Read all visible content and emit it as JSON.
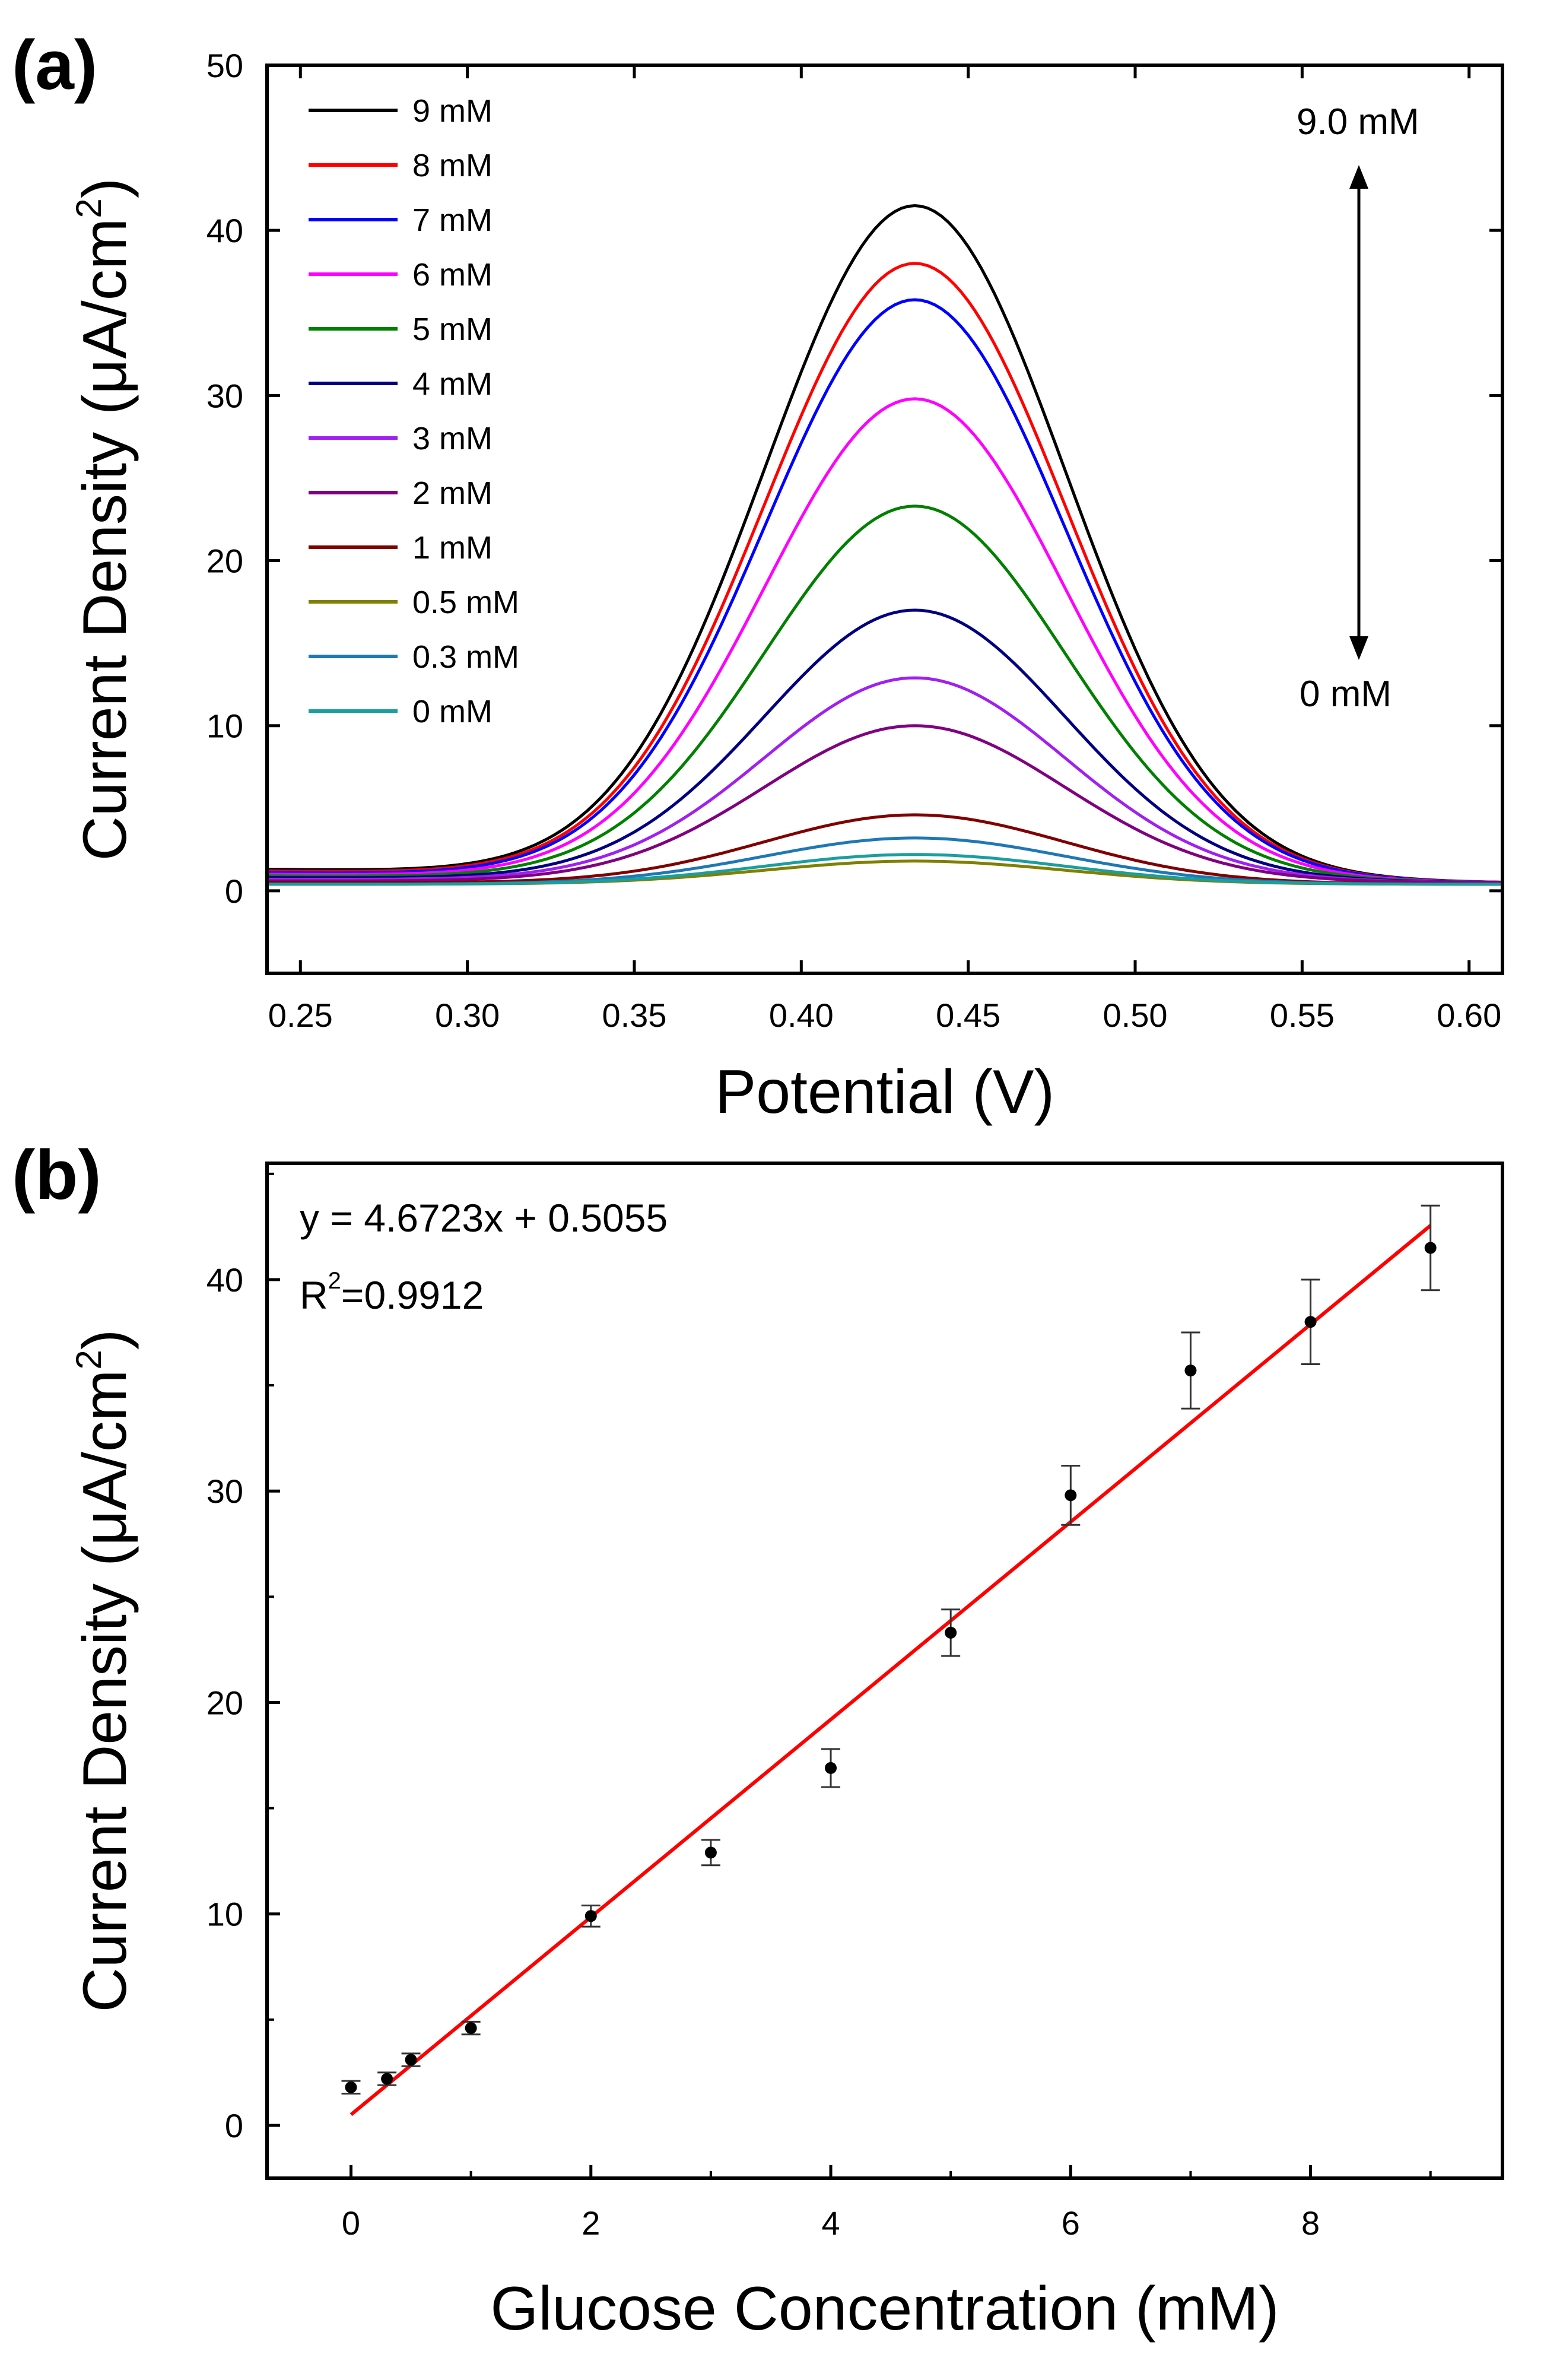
{
  "chart_data": [
    {
      "panel": "(a)",
      "type": "line",
      "xlabel": "Potential (V)",
      "ylabel": "Current Density (μA/cm",
      "ylabel_sup": "2",
      "ylabel_end": ")",
      "xlim": [
        0.24,
        0.61
      ],
      "ylim": [
        -5,
        50
      ],
      "xticks": [
        0.25,
        0.3,
        0.35,
        0.4,
        0.45,
        0.5,
        0.55,
        0.6
      ],
      "xtick_labels": [
        "0.25",
        "0.30",
        "0.35",
        "0.40",
        "0.45",
        "0.50",
        "0.55",
        "0.60"
      ],
      "yticks": [
        0,
        10,
        20,
        30,
        40,
        50
      ],
      "ytick_labels": [
        "0",
        "10",
        "20",
        "30",
        "40",
        "50"
      ],
      "legend_position": "top-left",
      "annotations": {
        "top": "9.0 mM",
        "bottom": "0 mM"
      },
      "series": [
        {
          "name": "9 mM",
          "color": "#000000",
          "peak": 41.5,
          "base_left": 1.3,
          "base_right": 0.5
        },
        {
          "name": "8 mM",
          "color": "#ff0000",
          "peak": 38.0,
          "base_left": 1.2,
          "base_right": 0.5
        },
        {
          "name": "7 mM",
          "color": "#0000ff",
          "peak": 35.8,
          "base_left": 1.1,
          "base_right": 0.5
        },
        {
          "name": "6 mM",
          "color": "#ff00ff",
          "peak": 29.8,
          "base_left": 1.0,
          "base_right": 0.5
        },
        {
          "name": "5 mM",
          "color": "#008000",
          "peak": 23.3,
          "base_left": 0.9,
          "base_right": 0.5
        },
        {
          "name": "4 mM",
          "color": "#000080",
          "peak": 17.0,
          "base_left": 0.8,
          "base_right": 0.5
        },
        {
          "name": "3 mM",
          "color": "#a020f0",
          "peak": 12.9,
          "base_left": 0.7,
          "base_right": 0.5
        },
        {
          "name": "2 mM",
          "color": "#800080",
          "peak": 10.0,
          "base_left": 0.6,
          "base_right": 0.5
        },
        {
          "name": "1 mM",
          "color": "#800000",
          "peak": 4.6,
          "base_left": 0.5,
          "base_right": 0.4
        },
        {
          "name": "0.5 mM",
          "color": "#808000",
          "peak": 1.8,
          "base_left": 0.4,
          "base_right": 0.4
        },
        {
          "name": "0.3 mM",
          "color": "#1e78b4",
          "peak": 3.2,
          "base_left": 0.4,
          "base_right": 0.4
        },
        {
          "name": "0 mM",
          "color": "#1a9e9e",
          "peak": 2.2,
          "base_left": 0.4,
          "base_right": 0.4
        }
      ]
    },
    {
      "panel": "(b)",
      "type": "scatter",
      "xlabel": "Glucose Concentration (mM)",
      "ylabel": "Current Density (μA/cm",
      "ylabel_sup": "2",
      "ylabel_end": ")",
      "xlim": [
        -0.7,
        9.6
      ],
      "ylim": [
        -2.5,
        45.5
      ],
      "xticks": [
        0,
        2,
        4,
        6,
        8
      ],
      "xtick_labels": [
        "0",
        "2",
        "4",
        "6",
        "8"
      ],
      "yticks": [
        0,
        10,
        20,
        30,
        40
      ],
      "ytick_labels": [
        "0",
        "10",
        "20",
        "30",
        "40"
      ],
      "points": [
        {
          "x": 0,
          "y": 1.8,
          "err": 0.3
        },
        {
          "x": 0.3,
          "y": 2.2,
          "err": 0.3
        },
        {
          "x": 0.5,
          "y": 3.1,
          "err": 0.3
        },
        {
          "x": 1,
          "y": 4.6,
          "err": 0.3
        },
        {
          "x": 2,
          "y": 9.9,
          "err": 0.5
        },
        {
          "x": 3,
          "y": 12.9,
          "err": 0.6
        },
        {
          "x": 4,
          "y": 16.9,
          "err": 0.9
        },
        {
          "x": 5,
          "y": 23.3,
          "err": 1.1
        },
        {
          "x": 6,
          "y": 29.8,
          "err": 1.4
        },
        {
          "x": 7,
          "y": 35.7,
          "err": 1.8
        },
        {
          "x": 8,
          "y": 38.0,
          "err": 2.0
        },
        {
          "x": 9,
          "y": 41.5,
          "err": 2.0
        }
      ],
      "fit": {
        "slope": 4.6723,
        "intercept": 0.5055,
        "x_range": [
          0,
          9
        ],
        "color": "#ff0000"
      },
      "equation": "y = 4.6723x + 0.5055",
      "r2_prefix": "R",
      "r2_sup": "2",
      "r2_value": "=0.9912"
    }
  ]
}
